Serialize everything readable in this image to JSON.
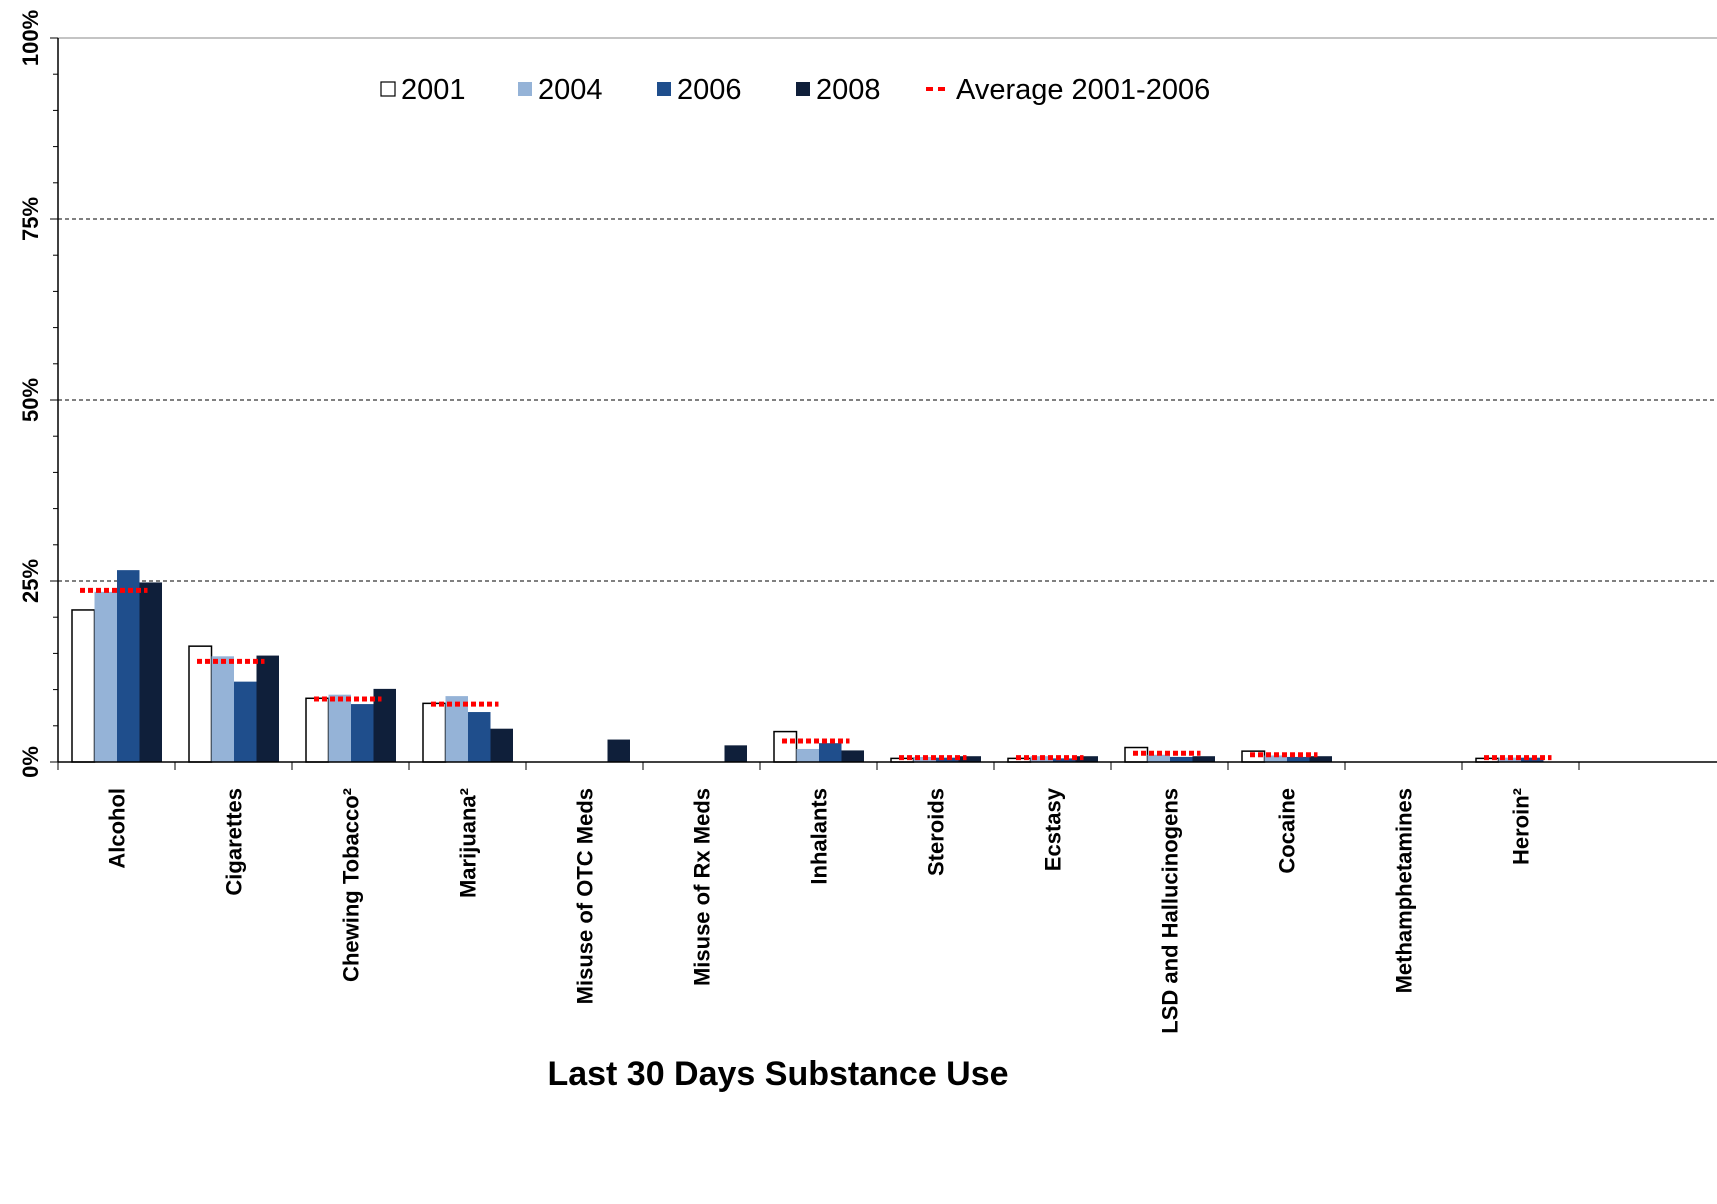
{
  "chart_data": {
    "type": "bar",
    "xlabel": "Last 30 Days Substance Use",
    "ylabel": "",
    "ylim": [
      0,
      100
    ],
    "yticks": [
      0,
      25,
      50,
      75,
      100
    ],
    "ytick_labels": [
      "0%",
      "25%",
      "50%",
      "75%",
      "100%"
    ],
    "grid": "dashed horizontal at 25%, 50%, 75%",
    "legend_position": "top-center",
    "categories": [
      "Alcohol",
      "Cigarettes",
      "Chewing Tobacco²",
      "Marijuana²",
      "Misuse of OTC Meds",
      "Misuse of Rx Meds",
      "Inhalants",
      "Steroids",
      "Ecstasy",
      "LSD and Hallucinogens",
      "Cocaine",
      "Methamphetamines",
      "Heroin²"
    ],
    "series": [
      {
        "name": "2001",
        "color": "#ffffff",
        "stroke": "#000000",
        "values": [
          21,
          16,
          8.8,
          8.1,
          null,
          null,
          4.2,
          0.5,
          0.5,
          2.0,
          1.5,
          null,
          0.5
        ]
      },
      {
        "name": "2004",
        "color": "#95b3d7",
        "stroke": "none",
        "values": [
          23.5,
          14.6,
          9.3,
          9.1,
          null,
          null,
          1.8,
          0.7,
          0.8,
          1.0,
          0.9,
          null,
          0.6
        ]
      },
      {
        "name": "2006",
        "color": "#1f4e8c",
        "stroke": "none",
        "values": [
          26.5,
          11.1,
          8.0,
          6.9,
          null,
          null,
          2.6,
          0.6,
          0.5,
          0.7,
          0.7,
          null,
          0.6
        ]
      },
      {
        "name": "2008",
        "color": "#0f1f3a",
        "stroke": "none",
        "values": [
          24.8,
          14.7,
          10.1,
          4.6,
          3.1,
          2.3,
          1.6,
          0.8,
          0.8,
          0.8,
          0.8,
          null,
          null
        ]
      }
    ],
    "average": {
      "name": "Average 2001-2006",
      "color": "#ff0000",
      "values": [
        23.7,
        13.9,
        8.7,
        8.0,
        null,
        null,
        2.9,
        0.6,
        0.6,
        1.2,
        1.0,
        null,
        0.6
      ]
    }
  }
}
